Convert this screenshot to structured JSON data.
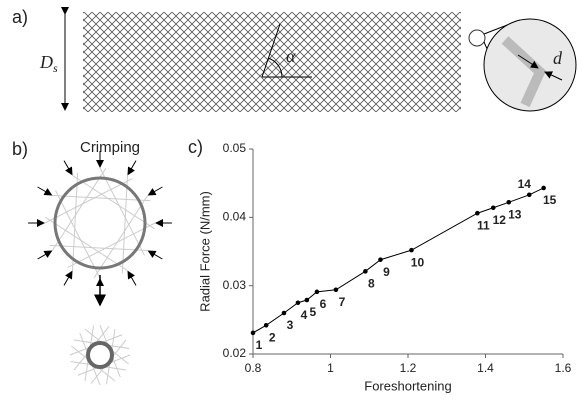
{
  "panels": {
    "a": {
      "label": "a)",
      "diameter": {
        "main": "D",
        "sub": "s"
      },
      "angle": "α",
      "strut": "d"
    },
    "b": {
      "label": "b)",
      "title": "Crimping"
    },
    "c": {
      "label": "c)"
    }
  },
  "chart_data": {
    "type": "line",
    "xlabel": "Foreshortening",
    "ylabel": "Radial Force (N/mm)",
    "x": [
      0.8,
      0.834,
      0.88,
      0.916,
      0.939,
      0.965,
      1.014,
      1.09,
      1.129,
      1.209,
      1.379,
      1.42,
      1.46,
      1.513,
      1.55
    ],
    "values": [
      0.0231,
      0.0242,
      0.026,
      0.0275,
      0.0279,
      0.0291,
      0.0294,
      0.0321,
      0.0338,
      0.0352,
      0.0406,
      0.0414,
      0.0422,
      0.0433,
      0.0443
    ],
    "point_labels": [
      "1",
      "2",
      "3",
      "4",
      "5",
      "6",
      "7",
      "8",
      "9",
      "10",
      "11",
      "12",
      "13",
      "14",
      "15"
    ],
    "color": "#000000",
    "xlim": [
      0.8,
      1.6
    ],
    "xticks": [
      0.8,
      1,
      1.2,
      1.4,
      1.6
    ],
    "ylim": [
      0.02,
      0.05
    ],
    "yticks": [
      0.02,
      0.03,
      0.04,
      0.05
    ]
  }
}
